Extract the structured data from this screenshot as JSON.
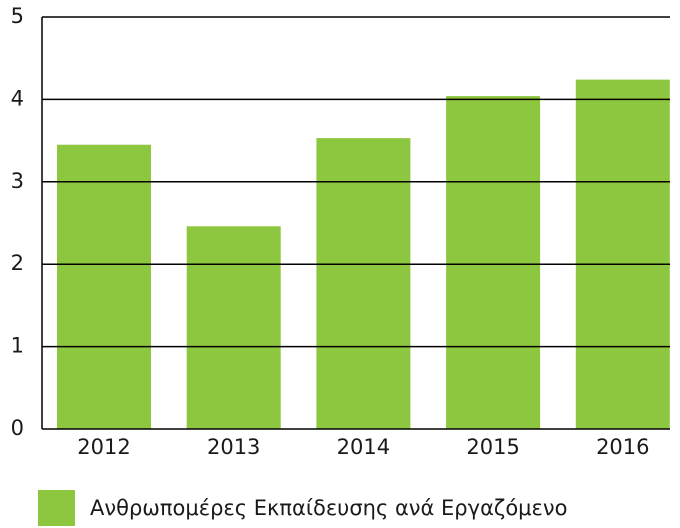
{
  "chart_data": {
    "type": "bar",
    "categories": [
      "2012",
      "2013",
      "2014",
      "2015",
      "2016"
    ],
    "series": [
      {
        "name": "Ανθρωπομέρες Εκπαίδευσης ανά Εργαζόμενο",
        "color": "#8dc63f",
        "values": [
          3.45,
          2.46,
          3.53,
          4.04,
          4.24
        ]
      }
    ],
    "ylim": [
      0,
      5
    ],
    "yticks": [
      0,
      1,
      2,
      3,
      4,
      5
    ],
    "grid": true,
    "legend": "bottom"
  }
}
